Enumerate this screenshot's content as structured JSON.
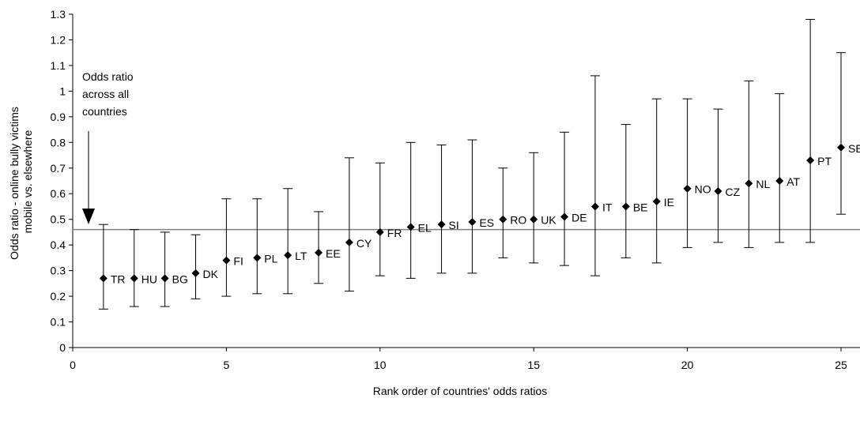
{
  "chart_data": {
    "type": "scatter",
    "title": "",
    "xlabel": "Rank order of countries' odds ratios",
    "ylabel_lines": [
      "Odds ratio - online bully victims",
      "mobile vs. elsewhere"
    ],
    "xlim": [
      0,
      25
    ],
    "ylim": [
      0,
      1.3
    ],
    "xticks": [
      0,
      5,
      10,
      15,
      20,
      25
    ],
    "yticks": [
      0,
      0.1,
      0.2,
      0.3,
      0.4,
      0.5,
      0.6,
      0.7,
      0.8,
      0.9,
      1,
      1.1,
      1.2,
      1.3
    ],
    "reference_line": {
      "y": 0.46
    },
    "annotation_lines": [
      "Odds ratio",
      "across all",
      "countries"
    ],
    "points": [
      {
        "x": 1,
        "label": "TR",
        "y": 0.27,
        "low": 0.15,
        "high": 0.48
      },
      {
        "x": 2,
        "label": "HU",
        "y": 0.27,
        "low": 0.16,
        "high": 0.46
      },
      {
        "x": 3,
        "label": "BG",
        "y": 0.27,
        "low": 0.16,
        "high": 0.45
      },
      {
        "x": 4,
        "label": "DK",
        "y": 0.29,
        "low": 0.19,
        "high": 0.44
      },
      {
        "x": 5,
        "label": "FI",
        "y": 0.34,
        "low": 0.2,
        "high": 0.58
      },
      {
        "x": 6,
        "label": "PL",
        "y": 0.35,
        "low": 0.21,
        "high": 0.58
      },
      {
        "x": 7,
        "label": "LT",
        "y": 0.36,
        "low": 0.21,
        "high": 0.62
      },
      {
        "x": 8,
        "label": "EE",
        "y": 0.37,
        "low": 0.25,
        "high": 0.53
      },
      {
        "x": 9,
        "label": "CY",
        "y": 0.41,
        "low": 0.22,
        "high": 0.74
      },
      {
        "x": 10,
        "label": "FR",
        "y": 0.45,
        "low": 0.28,
        "high": 0.72
      },
      {
        "x": 11,
        "label": "EL",
        "y": 0.47,
        "low": 0.27,
        "high": 0.8
      },
      {
        "x": 12,
        "label": "SI",
        "y": 0.48,
        "low": 0.29,
        "high": 0.79
      },
      {
        "x": 13,
        "label": "ES",
        "y": 0.49,
        "low": 0.29,
        "high": 0.81
      },
      {
        "x": 14,
        "label": "RO",
        "y": 0.5,
        "low": 0.35,
        "high": 0.7
      },
      {
        "x": 15,
        "label": "UK",
        "y": 0.5,
        "low": 0.33,
        "high": 0.76
      },
      {
        "x": 16,
        "label": "DE",
        "y": 0.51,
        "low": 0.32,
        "high": 0.84
      },
      {
        "x": 17,
        "label": "IT",
        "y": 0.55,
        "low": 0.28,
        "high": 1.06
      },
      {
        "x": 18,
        "label": "BE",
        "y": 0.55,
        "low": 0.35,
        "high": 0.87
      },
      {
        "x": 19,
        "label": "IE",
        "y": 0.57,
        "low": 0.33,
        "high": 0.97
      },
      {
        "x": 20,
        "label": "NO",
        "y": 0.62,
        "low": 0.39,
        "high": 0.97
      },
      {
        "x": 21,
        "label": "CZ",
        "y": 0.61,
        "low": 0.41,
        "high": 0.93
      },
      {
        "x": 22,
        "label": "NL",
        "y": 0.64,
        "low": 0.39,
        "high": 1.04
      },
      {
        "x": 23,
        "label": "AT",
        "y": 0.65,
        "low": 0.41,
        "high": 0.99
      },
      {
        "x": 24,
        "label": "PT",
        "y": 0.73,
        "low": 0.41,
        "high": 1.28
      },
      {
        "x": 25,
        "label": "SE",
        "y": 0.78,
        "low": 0.52,
        "high": 1.15
      }
    ],
    "grid": false,
    "legend": "none",
    "marker": "diamond",
    "color": "#000000",
    "reference_line_color": "#808080"
  }
}
